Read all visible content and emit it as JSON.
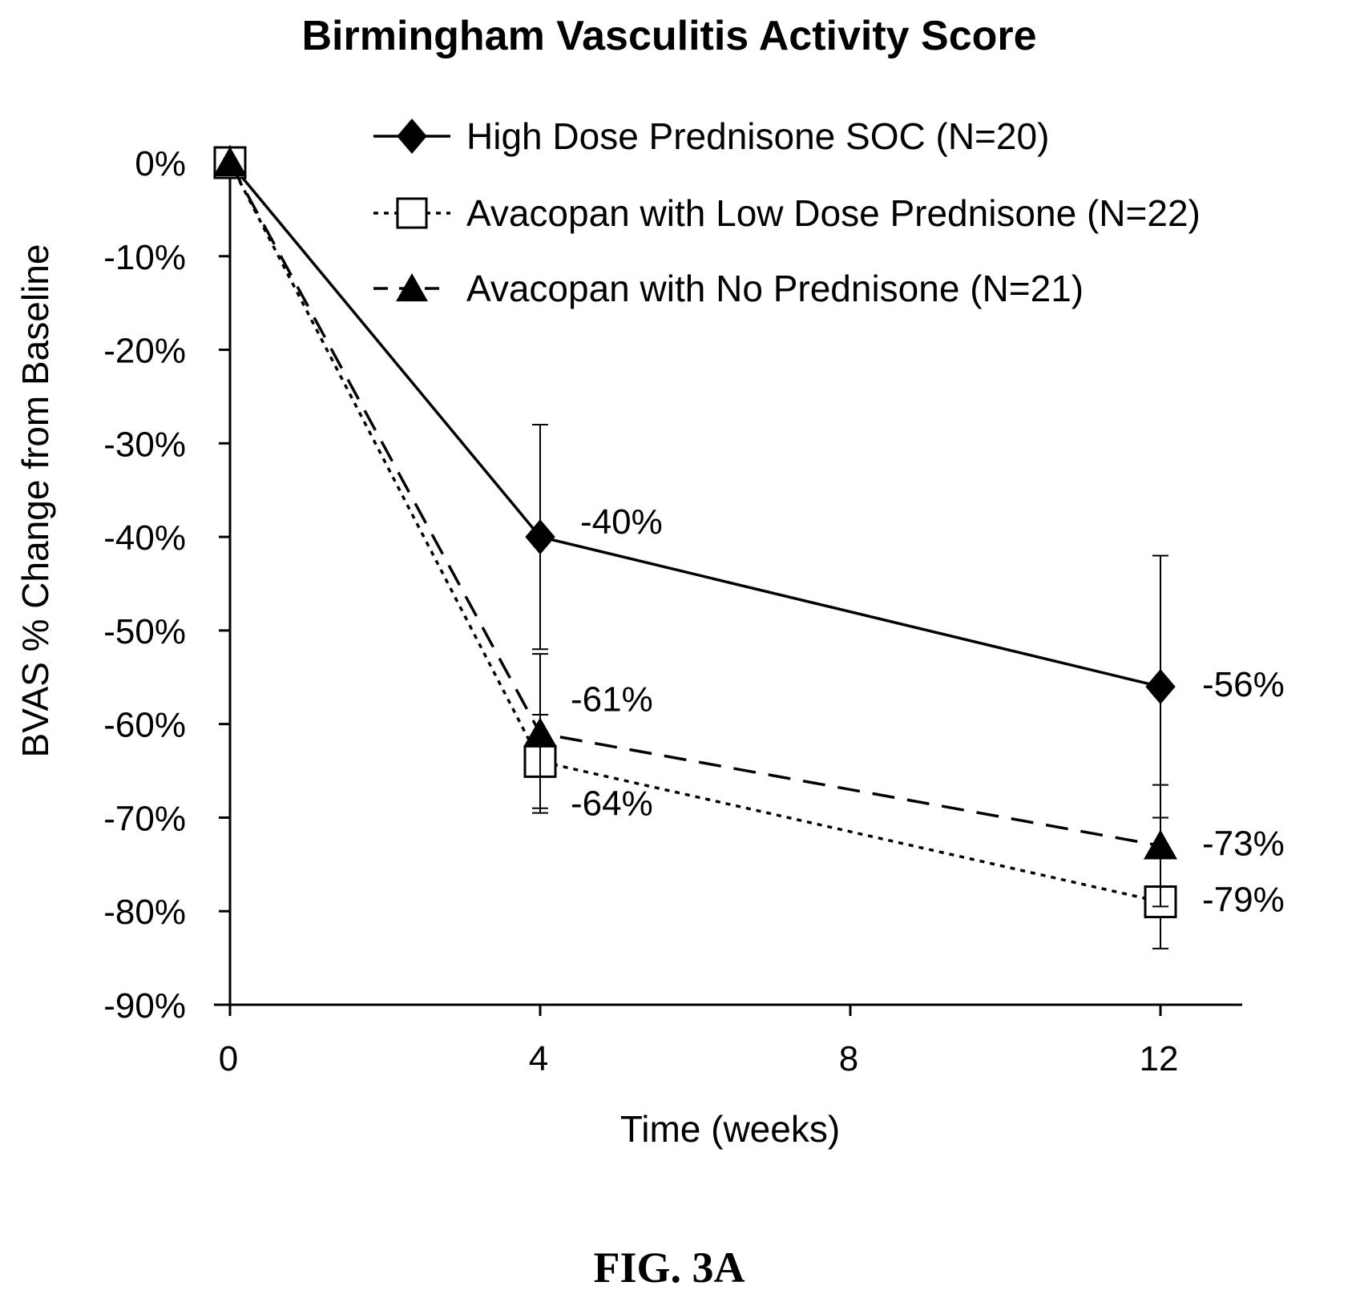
{
  "chart_data": {
    "type": "line",
    "title": "Birmingham Vasculitis Activity Score",
    "xlabel": "Time (weeks)",
    "ylabel": "BVAS % Change from Baseline",
    "x_ticks": [
      0,
      4,
      8,
      12
    ],
    "x_tick_labels": [
      "0",
      "4",
      "8",
      "12"
    ],
    "y_ticks": [
      0,
      -10,
      -20,
      -30,
      -40,
      -50,
      -60,
      -70,
      -80,
      -90
    ],
    "y_tick_labels": [
      "0%",
      "-10%",
      "-20%",
      "-30%",
      "-40%",
      "-50%",
      "-60%",
      "-70%",
      "-80%",
      "-90%"
    ],
    "xlim": [
      0,
      13
    ],
    "ylim": [
      -90,
      0
    ],
    "legend_position": "top-right",
    "grid": false,
    "series": [
      {
        "name": "High Dose Prednisone SOC (N=20)",
        "marker": "diamond",
        "line_style": "solid",
        "x": [
          0,
          4,
          12
        ],
        "y": [
          0,
          -40,
          -56
        ],
        "error_upper": [
          0,
          -28,
          -42
        ],
        "error_lower": [
          0,
          -52,
          -70
        ],
        "point_labels": [
          "",
          "-40%",
          "-56%"
        ]
      },
      {
        "name": "Avacopan with Low Dose Prednisone (N=22)",
        "marker": "square-open",
        "line_style": "dotted",
        "x": [
          0,
          4,
          12
        ],
        "y": [
          0,
          -64,
          -79
        ],
        "error_upper": [
          0,
          -59,
          -73
        ],
        "error_lower": [
          0,
          -69,
          -84
        ],
        "point_labels": [
          "",
          "-64%",
          "-79%"
        ]
      },
      {
        "name": "Avacopan with No Prednisone (N=21)",
        "marker": "triangle",
        "line_style": "dashed",
        "x": [
          0,
          4,
          12
        ],
        "y": [
          0,
          -61,
          -73
        ],
        "error_upper": [
          0,
          -52.5,
          -66.5
        ],
        "error_lower": [
          0,
          -69.5,
          -79.5
        ],
        "point_labels": [
          "",
          "-61%",
          "-73%"
        ]
      }
    ]
  },
  "figure_caption": "FIG. 3A",
  "colors": {
    "ink": "#000000",
    "background": "#ffffff"
  }
}
